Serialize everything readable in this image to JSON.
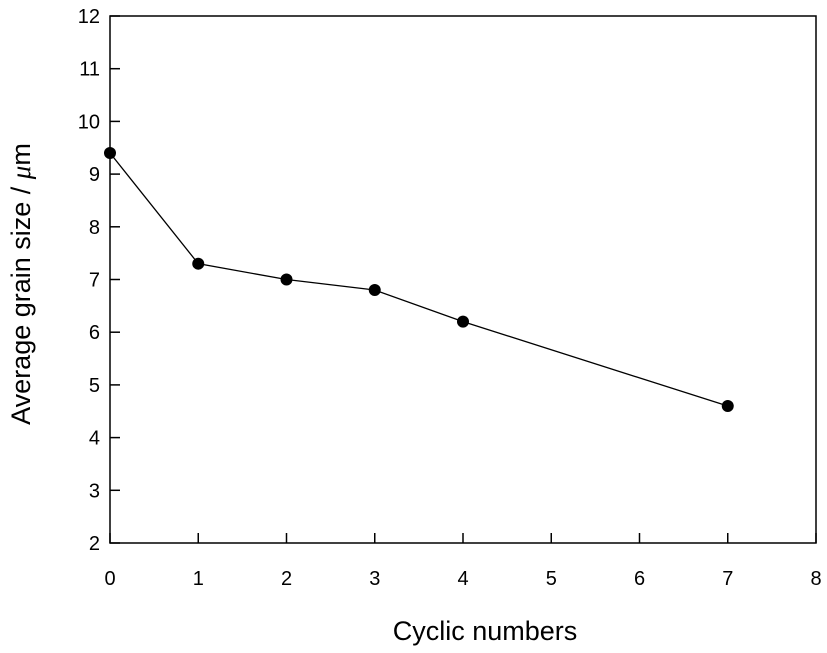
{
  "chart_data": {
    "type": "line",
    "title": "",
    "xlabel": "Cyclic numbers",
    "ylabel": {
      "text": "Average grain size / ",
      "unit_greek": "μ",
      "unit_rest": "m"
    },
    "xlim": [
      0,
      8
    ],
    "ylim": [
      2,
      12
    ],
    "xticks": [
      "0",
      "1",
      "2",
      "3",
      "4",
      "5",
      "6",
      "7",
      "8"
    ],
    "yticks": [
      "2",
      "3",
      "4",
      "5",
      "6",
      "7",
      "8",
      "9",
      "10",
      "11",
      "12"
    ],
    "grid": false,
    "legend": "none",
    "series": [
      {
        "x": [
          0,
          1,
          2,
          3,
          4,
          7
        ],
        "y": [
          9.4,
          7.3,
          7.0,
          6.8,
          6.2,
          4.6
        ],
        "marker": "filled-circle",
        "color": "#000000"
      }
    ]
  }
}
